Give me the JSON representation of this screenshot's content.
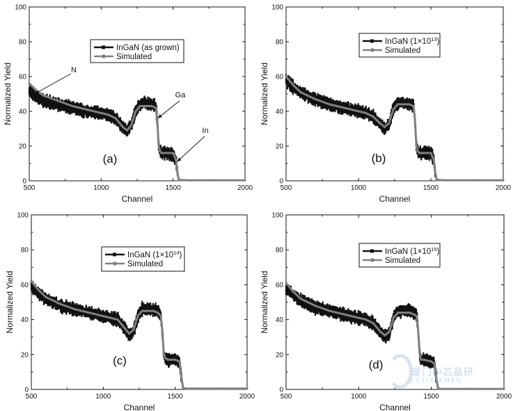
{
  "colors": {
    "measured": "#111111",
    "simulated": "#808080",
    "axis": "#111111"
  },
  "watermark": {
    "text": "厦门中芯晶研",
    "sub": "CSTIXIAMEN"
  },
  "chart_data": [
    {
      "type": "line",
      "panel_label": "(a)",
      "xlabel": "Channel",
      "ylabel": "Normalized Yield",
      "xlim": [
        500,
        2000
      ],
      "ylim": [
        0,
        100
      ],
      "x_ticks": [
        "500",
        "1000",
        "1500",
        "2000"
      ],
      "y_ticks": [
        "0",
        "20",
        "40",
        "60",
        "80",
        "100"
      ],
      "legend": {
        "position": "upper-center",
        "measured": "InGaN (as grown)",
        "simulated": "Simulated"
      },
      "annotations": [
        {
          "text": "N",
          "x": 537,
          "y": 50
        },
        {
          "text": "Ga",
          "x": 1393,
          "y": 36
        },
        {
          "text": "In",
          "x": 1528,
          "y": 11
        }
      ],
      "series": [
        {
          "name": "InGaN (as grown)",
          "kind": "measured",
          "x": [
            500,
            550,
            600,
            700,
            800,
            900,
            1000,
            1050,
            1100,
            1150,
            1180,
            1210,
            1240,
            1270,
            1300,
            1350,
            1380,
            1390,
            1400,
            1410,
            1420,
            1450,
            1500,
            1520,
            1530,
            1540,
            1550,
            1600,
            1800,
            2000
          ],
          "y": [
            52,
            48,
            46,
            44,
            42,
            40,
            39,
            38,
            36,
            31,
            29,
            32,
            40,
            44,
            45,
            44,
            43,
            35,
            20,
            17,
            16,
            16,
            15,
            12,
            5,
            0.5,
            0.5,
            0.3,
            0.3,
            0.3
          ]
        },
        {
          "name": "Simulated",
          "kind": "simulated",
          "x": [
            500,
            550,
            600,
            700,
            800,
            900,
            1000,
            1050,
            1100,
            1150,
            1180,
            1210,
            1240,
            1270,
            1300,
            1350,
            1380,
            1390,
            1400,
            1410,
            1420,
            1450,
            1500,
            1520,
            1530,
            1540,
            1550,
            1600,
            1800,
            2000
          ],
          "y": [
            56,
            52,
            49,
            46,
            43,
            41,
            39,
            38,
            36,
            31,
            29,
            32,
            40,
            43,
            43,
            43,
            42,
            35,
            20,
            17,
            16,
            16,
            16,
            12,
            5,
            0.5,
            0.5,
            0.3,
            0.3,
            0.3
          ]
        }
      ]
    },
    {
      "type": "line",
      "panel_label": "(b)",
      "xlabel": "Channel",
      "ylabel": "Normalized Yield",
      "xlim": [
        500,
        2000
      ],
      "ylim": [
        0,
        100
      ],
      "x_ticks": [
        "500",
        "1000",
        "1500",
        "2000"
      ],
      "y_ticks": [
        "0",
        "20",
        "40",
        "60",
        "80",
        "100"
      ],
      "legend": {
        "position": "upper-center",
        "measured": "InGaN (1×10",
        "measured_exp": "13",
        "measured_tail": ")",
        "simulated": "Simulated"
      },
      "annotations": [],
      "series": [
        {
          "name": "InGaN (1×10^13)",
          "kind": "measured",
          "x": [
            500,
            550,
            600,
            700,
            800,
            900,
            1000,
            1050,
            1100,
            1150,
            1180,
            1210,
            1240,
            1270,
            1300,
            1350,
            1380,
            1390,
            1400,
            1410,
            1420,
            1450,
            1500,
            1520,
            1530,
            1540,
            1550,
            1600,
            1800,
            2000
          ],
          "y": [
            58,
            54,
            51,
            47,
            44,
            42,
            40,
            39,
            37,
            33,
            30,
            32,
            41,
            45,
            45,
            44,
            44,
            35,
            20,
            17,
            16,
            16,
            16,
            12,
            5,
            0.5,
            0.5,
            0.3,
            0.3,
            0.3
          ]
        },
        {
          "name": "Simulated",
          "kind": "simulated",
          "x": [
            500,
            550,
            600,
            700,
            800,
            900,
            1000,
            1050,
            1100,
            1150,
            1180,
            1210,
            1240,
            1270,
            1300,
            1350,
            1380,
            1390,
            1400,
            1410,
            1420,
            1450,
            1500,
            1520,
            1530,
            1540,
            1550,
            1600,
            1800,
            2000
          ],
          "y": [
            60,
            55,
            51,
            47,
            44,
            42,
            40,
            39,
            37,
            33,
            31,
            33,
            41,
            44,
            44,
            44,
            43,
            35,
            20,
            17,
            16,
            16,
            16,
            12,
            5,
            0.5,
            0.5,
            0.3,
            0.3,
            0.3
          ]
        }
      ]
    },
    {
      "type": "line",
      "panel_label": "(c)",
      "xlabel": "Channel",
      "ylabel": "Normalized Yield",
      "xlim": [
        500,
        2000
      ],
      "ylim": [
        0,
        100
      ],
      "x_ticks": [
        "500",
        "1000",
        "1500",
        "2000"
      ],
      "y_ticks": [
        "0",
        "20",
        "40",
        "60",
        "80",
        "100"
      ],
      "legend": {
        "position": "upper-center",
        "measured": "InGaN (1×10",
        "measured_exp": "14",
        "measured_tail": ")",
        "simulated": "Simulated"
      },
      "annotations": [],
      "series": [
        {
          "name": "InGaN (1×10^14)",
          "kind": "measured",
          "x": [
            500,
            550,
            600,
            700,
            800,
            900,
            1000,
            1050,
            1100,
            1150,
            1180,
            1210,
            1240,
            1270,
            1300,
            1350,
            1380,
            1400,
            1410,
            1420,
            1430,
            1450,
            1500,
            1530,
            1545,
            1555,
            1570,
            1650,
            1800,
            2000
          ],
          "y": [
            59,
            55,
            52,
            48,
            46,
            44,
            42,
            41,
            40,
            35,
            31,
            33,
            42,
            46,
            46,
            46,
            45,
            42,
            34,
            21,
            18,
            17,
            17,
            16,
            6,
            1,
            0.5,
            0.5,
            0.5,
            0.5
          ]
        },
        {
          "name": "Simulated",
          "kind": "simulated",
          "x": [
            500,
            550,
            600,
            700,
            800,
            900,
            1000,
            1050,
            1100,
            1150,
            1180,
            1210,
            1240,
            1270,
            1300,
            1350,
            1380,
            1400,
            1410,
            1420,
            1430,
            1450,
            1500,
            1530,
            1545,
            1555,
            1570,
            1650,
            1800,
            2000
          ],
          "y": [
            62,
            57,
            53,
            49,
            46,
            44,
            42,
            41,
            40,
            35,
            32,
            34,
            42,
            45,
            45,
            45,
            44,
            42,
            34,
            21,
            18,
            17,
            17,
            16,
            6,
            1,
            0.5,
            0.5,
            0.5,
            0.5
          ]
        }
      ]
    },
    {
      "type": "line",
      "panel_label": "(d)",
      "xlabel": "Channel",
      "ylabel": "Normalized Yield",
      "xlim": [
        500,
        2000
      ],
      "ylim": [
        0,
        100
      ],
      "x_ticks": [
        "500",
        "1000",
        "1500",
        "2000"
      ],
      "y_ticks": [
        "0",
        "20",
        "40",
        "60",
        "80",
        "100"
      ],
      "legend": {
        "position": "upper-center",
        "measured": "InGaN (1×10",
        "measured_exp": "15",
        "measured_tail": ")",
        "simulated": "Simulated"
      },
      "annotations": [],
      "series": [
        {
          "name": "InGaN (1×10^15)",
          "kind": "measured",
          "x": [
            500,
            550,
            600,
            700,
            800,
            900,
            1000,
            1050,
            1100,
            1150,
            1180,
            1210,
            1240,
            1270,
            1300,
            1350,
            1380,
            1400,
            1410,
            1420,
            1430,
            1450,
            1500,
            1520,
            1535,
            1545,
            1560,
            1650,
            1800,
            2000
          ],
          "y": [
            58,
            54,
            51,
            47,
            45,
            43,
            41,
            40,
            38,
            33,
            30,
            32,
            41,
            45,
            45,
            45,
            44,
            42,
            33,
            20,
            17,
            17,
            16,
            15,
            6,
            1,
            0.3,
            0.3,
            0.3,
            0.3
          ]
        },
        {
          "name": "Simulated",
          "kind": "simulated",
          "x": [
            500,
            550,
            600,
            700,
            800,
            900,
            1000,
            1050,
            1100,
            1150,
            1180,
            1210,
            1240,
            1270,
            1300,
            1350,
            1380,
            1400,
            1410,
            1420,
            1430,
            1450,
            1500,
            1520,
            1535,
            1545,
            1560,
            1650,
            1800,
            2000
          ],
          "y": [
            61,
            56,
            52,
            48,
            45,
            43,
            41,
            40,
            38,
            33,
            31,
            33,
            41,
            44,
            44,
            44,
            43,
            42,
            33,
            20,
            17,
            17,
            16,
            15,
            6,
            1,
            0.3,
            0.3,
            0.3,
            0.3
          ]
        }
      ]
    }
  ]
}
